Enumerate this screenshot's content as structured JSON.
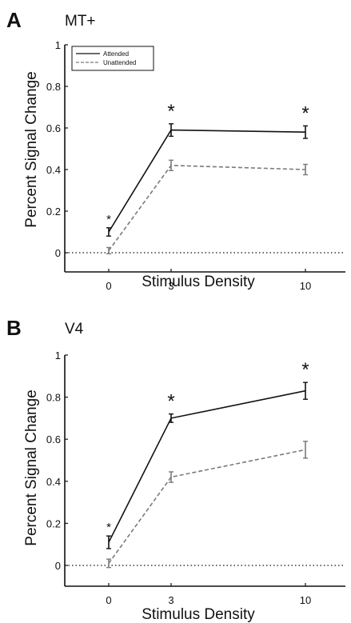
{
  "figure": {
    "panels": [
      {
        "letter": "A",
        "title": "MT+"
      },
      {
        "letter": "B",
        "title": "V4"
      }
    ]
  },
  "chart_data": [
    {
      "type": "line",
      "title": "MT+",
      "xlabel": "Stimulus Density",
      "ylabel": "Percent Signal Change",
      "x": [
        0,
        3,
        10
      ],
      "xticks": [
        "0",
        "3",
        "10"
      ],
      "yticks": [
        "0",
        "0.2",
        "0.4",
        "0.6",
        "0.8",
        "1"
      ],
      "ylim": [
        -0.1,
        1.0
      ],
      "grid": false,
      "legend_position": "top-left",
      "zero_line": "dotted",
      "series": [
        {
          "name": "Attended",
          "values": [
            0.1,
            0.59,
            0.58
          ],
          "errors": [
            0.02,
            0.03,
            0.03
          ],
          "color": "#111111",
          "style": "solid"
        },
        {
          "name": "Unattended",
          "values": [
            0.01,
            0.42,
            0.4
          ],
          "errors": [
            0.015,
            0.025,
            0.025
          ],
          "color": "#7a7a7a",
          "style": "dashed"
        }
      ],
      "significance": [
        {
          "x": 0,
          "label": "*",
          "size": "small"
        },
        {
          "x": 3,
          "label": "*",
          "size": "large"
        },
        {
          "x": 10,
          "label": "*",
          "size": "large"
        }
      ]
    },
    {
      "type": "line",
      "title": "V4",
      "xlabel": "Stimulus Density",
      "ylabel": "Percent Signal Change",
      "x": [
        0,
        3,
        10
      ],
      "xticks": [
        "0",
        "3",
        "10"
      ],
      "yticks": [
        "0",
        "0.2",
        "0.4",
        "0.6",
        "0.8",
        "1"
      ],
      "ylim": [
        -0.1,
        1.0
      ],
      "grid": false,
      "zero_line": "dotted",
      "series": [
        {
          "name": "Attended",
          "values": [
            0.11,
            0.7,
            0.83
          ],
          "errors": [
            0.03,
            0.02,
            0.04
          ],
          "color": "#111111",
          "style": "solid"
        },
        {
          "name": "Unattended",
          "values": [
            0.01,
            0.42,
            0.55
          ],
          "errors": [
            0.02,
            0.025,
            0.04
          ],
          "color": "#7a7a7a",
          "style": "dashed"
        }
      ],
      "significance": [
        {
          "x": 0,
          "label": "*",
          "size": "small"
        },
        {
          "x": 3,
          "label": "*",
          "size": "large"
        },
        {
          "x": 10,
          "label": "*",
          "size": "large"
        }
      ]
    }
  ]
}
